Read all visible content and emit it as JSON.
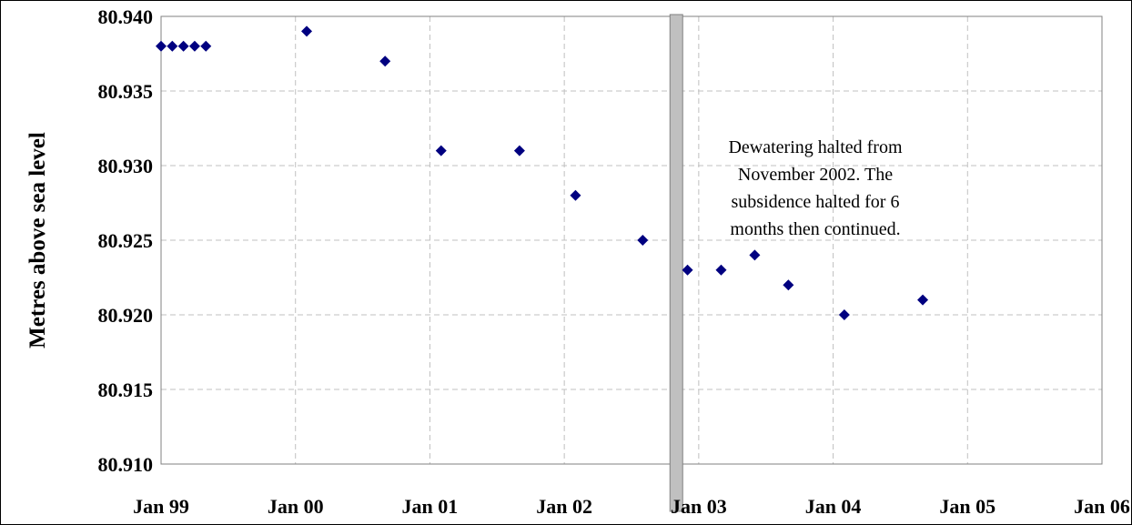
{
  "chart_data": {
    "type": "scatter",
    "title": "",
    "xlabel": "",
    "ylabel": "Metres above sea level",
    "ylim": [
      80.91,
      80.94
    ],
    "y_ticks": [
      "80.910",
      "80.915",
      "80.920",
      "80.925",
      "80.930",
      "80.935",
      "80.940"
    ],
    "x_range": [
      "1999-01",
      "2006-01"
    ],
    "x_ticks": [
      "Jan 99",
      "Jan 00",
      "Jan 01",
      "Jan 02",
      "Jan 03",
      "Jan 04",
      "Jan 05",
      "Jan 06"
    ],
    "grid": true,
    "legend": "none",
    "marker": "diamond",
    "marker_color": "#000080",
    "series": [
      {
        "x": [
          "1999-01",
          "1999-02",
          "1999-03",
          "1999-04",
          "1999-05",
          "2000-02",
          "2000-09",
          "2001-02",
          "2001-09",
          "2002-02",
          "2002-08",
          "2002-12",
          "2003-03",
          "2003-06",
          "2003-09",
          "2004-02",
          "2004-09"
        ],
        "y": [
          80.938,
          80.938,
          80.938,
          80.938,
          80.938,
          80.939,
          80.937,
          80.931,
          80.931,
          80.928,
          80.925,
          80.923,
          80.923,
          80.924,
          80.922,
          80.92,
          80.921
        ]
      }
    ],
    "event_marker": {
      "x": "2002-11",
      "color": "#c0c0c0"
    },
    "annotation": {
      "lines": [
        "Dewatering halted from",
        "November 2002.  The",
        "subsidence halted for 6",
        "months then continued."
      ]
    }
  }
}
